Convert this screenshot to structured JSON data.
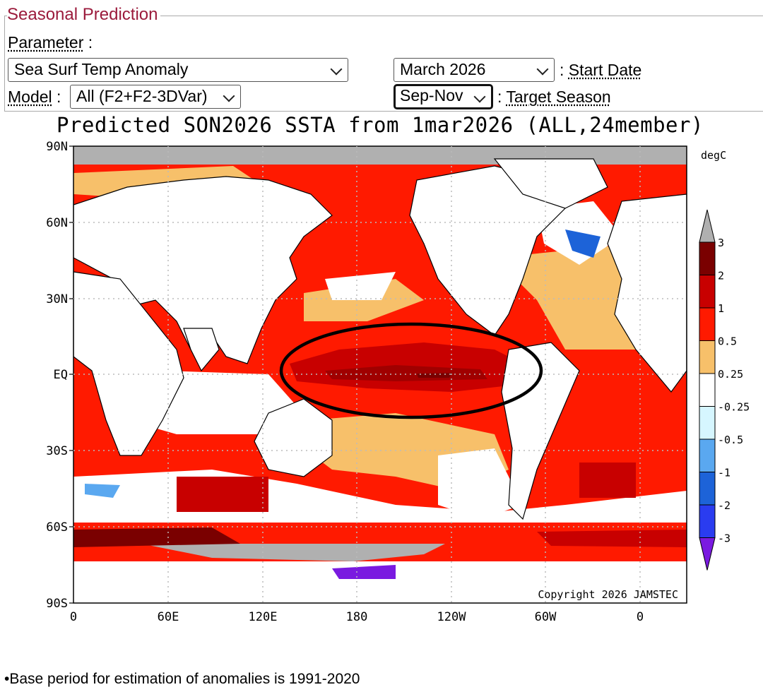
{
  "form": {
    "legend": "Seasonal Prediction",
    "parameter_label": "Parameter",
    "parameter_sep": ":",
    "parameter_value": "Sea Surf Temp Anomaly",
    "start_value": "March 2026",
    "start_label": "Start Date",
    "model_label": "Model",
    "model_value": "All (F2+F2-3DVar)",
    "season_value": "Sep-Nov",
    "season_label": "Target Season",
    "colon": ":"
  },
  "map": {
    "title": "Predicted SON2026 SSTA from 1mar2026 (ALL,24member)",
    "lat_labels": [
      "90N",
      "60N",
      "30N",
      "EQ",
      "30S",
      "60S",
      "90S"
    ],
    "lon_labels": [
      "0",
      "60E",
      "120E",
      "180",
      "120W",
      "60W",
      "0"
    ],
    "unit": "degC",
    "copyright": "Copyright 2026 JAMSTEC",
    "colorbar": {
      "labels": [
        "3",
        "2",
        "1",
        "0.5",
        "0.25",
        "-0.25",
        "-0.5",
        "-1",
        "-2",
        "-3"
      ],
      "colors": [
        "#b0b0b0",
        "#7a0000",
        "#c80000",
        "#ff1a00",
        "#f7c06a",
        "#ffffff",
        "#d6f6ff",
        "#5aa8f0",
        "#1d63d8",
        "#2a3cf0",
        "#7a1ae0"
      ]
    }
  },
  "footer": {
    "note": "•Base period for estimation of anomalies is 1991-2020"
  }
}
